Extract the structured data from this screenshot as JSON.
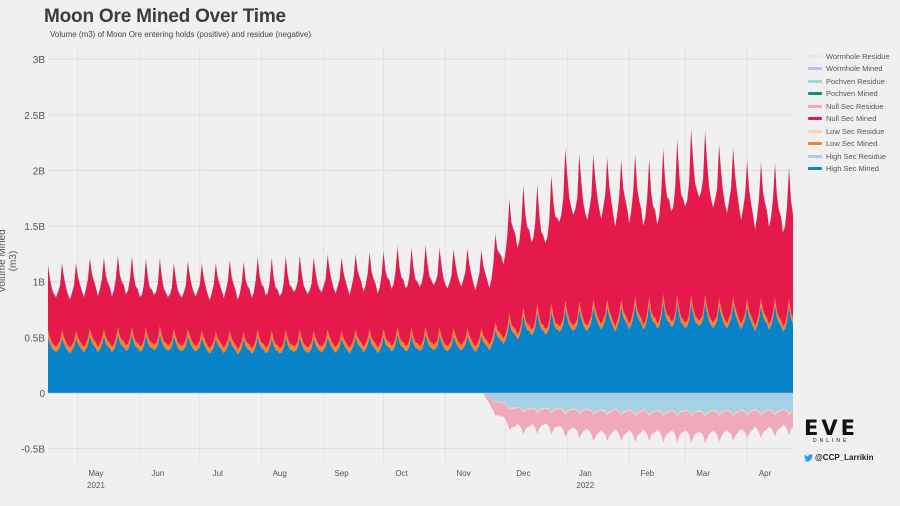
{
  "title": "Moon Ore Mined Over Time",
  "subtitle": "Volume (m3) of Moon Ore entering holds (positive) and residue (negative)",
  "twitter_handle": "@CCP_Larrikin",
  "logo": {
    "mark": "EVE",
    "sub": "ONLINE"
  },
  "legend": [
    {
      "label": "Wormhole Residue",
      "color": "#e9e4f7"
    },
    {
      "label": "Wormhole Mined",
      "color": "#c7b8f0"
    },
    {
      "label": "Pochven Residue",
      "color": "#a0d8cc"
    },
    {
      "label": "Pochven Mined",
      "color": "#1a8a80"
    },
    {
      "label": "Null Sec Residue",
      "color": "#f0a8bc"
    },
    {
      "label": "Null Sec Mined",
      "color": "#e5194a"
    },
    {
      "label": "Low Sec Residue",
      "color": "#f5d4b0"
    },
    {
      "label": "Low Sec Mined",
      "color": "#f0852d"
    },
    {
      "label": "High Sec Residue",
      "color": "#a6d0e6"
    },
    {
      "label": "High Sec Mined",
      "color": "#0882c8"
    }
  ],
  "chart_data": {
    "type": "area",
    "title": "Moon Ore Mined Over Time",
    "subtitle": "Volume (m3) of Moon Ore entering holds (positive) and residue (negative)",
    "ylabel": "Volume Mined (m3)",
    "xlabel": "",
    "ylim": [
      -0.62,
      3.1
    ],
    "yticks": [
      {
        "value": 3,
        "label": "3B"
      },
      {
        "value": 2.5,
        "label": "2.5B"
      },
      {
        "value": 2,
        "label": "2B"
      },
      {
        "value": 1.5,
        "label": "1.5B"
      },
      {
        "value": 1,
        "label": "1B"
      },
      {
        "value": 0.5,
        "label": "0.5B"
      },
      {
        "value": 0,
        "label": "0"
      },
      {
        "value": -0.5,
        "label": "-0.5B"
      }
    ],
    "xrange": [
      "2021-04-16",
      "2022-04-24"
    ],
    "xticks": [
      {
        "date": "2021-05-01",
        "label": "May",
        "sub": "2021"
      },
      {
        "date": "2021-06-01",
        "label": "Jun",
        "sub": ""
      },
      {
        "date": "2021-07-01",
        "label": "Jul",
        "sub": ""
      },
      {
        "date": "2021-08-01",
        "label": "Aug",
        "sub": ""
      },
      {
        "date": "2021-09-01",
        "label": "Sep",
        "sub": ""
      },
      {
        "date": "2021-10-01",
        "label": "Oct",
        "sub": ""
      },
      {
        "date": "2021-11-01",
        "label": "Nov",
        "sub": ""
      },
      {
        "date": "2021-12-01",
        "label": "Dec",
        "sub": ""
      },
      {
        "date": "2022-01-01",
        "label": "Jan",
        "sub": "2022"
      },
      {
        "date": "2022-02-01",
        "label": "Feb",
        "sub": ""
      },
      {
        "date": "2022-03-01",
        "label": "Mar",
        "sub": ""
      },
      {
        "date": "2022-04-01",
        "label": "Apr",
        "sub": ""
      }
    ],
    "units": "billions of m3",
    "series": [
      {
        "name": "High Sec Mined",
        "color": "#0882c8",
        "stack": "positive",
        "points": [
          [
            "2021-04-16",
            0.38
          ],
          [
            "2021-05-15",
            0.4
          ],
          [
            "2021-06-15",
            0.4
          ],
          [
            "2021-07-15",
            0.38
          ],
          [
            "2021-08-15",
            0.38
          ],
          [
            "2021-09-15",
            0.39
          ],
          [
            "2021-10-15",
            0.4
          ],
          [
            "2021-11-15",
            0.4
          ],
          [
            "2021-11-24",
            0.42
          ],
          [
            "2021-12-05",
            0.52
          ],
          [
            "2021-12-20",
            0.56
          ],
          [
            "2022-01-15",
            0.6
          ],
          [
            "2022-02-15",
            0.62
          ],
          [
            "2022-03-15",
            0.62
          ],
          [
            "2022-04-24",
            0.6
          ]
        ]
      },
      {
        "name": "Low Sec Mined",
        "color": "#f0852d",
        "stack": "positive",
        "points": [
          [
            "2021-04-16",
            0.05
          ],
          [
            "2021-11-24",
            0.05
          ],
          [
            "2021-12-20",
            0.05
          ],
          [
            "2022-04-24",
            0.05
          ]
        ]
      },
      {
        "name": "Null Sec Mined",
        "color": "#e5194a",
        "stack": "positive",
        "points": [
          [
            "2021-04-16",
            0.45
          ],
          [
            "2021-05-15",
            0.5
          ],
          [
            "2021-06-15",
            0.45
          ],
          [
            "2021-07-15",
            0.48
          ],
          [
            "2021-08-15",
            0.5
          ],
          [
            "2021-09-15",
            0.52
          ],
          [
            "2021-10-15",
            0.55
          ],
          [
            "2021-11-15",
            0.55
          ],
          [
            "2021-11-24",
            0.55
          ],
          [
            "2021-12-05",
            0.85
          ],
          [
            "2021-12-20",
            0.8
          ],
          [
            "2022-01-01",
            1.05
          ],
          [
            "2022-01-15",
            1.0
          ],
          [
            "2022-02-15",
            0.95
          ],
          [
            "2022-03-05",
            1.15
          ],
          [
            "2022-03-15",
            1.1
          ],
          [
            "2022-04-05",
            0.95
          ],
          [
            "2022-04-24",
            0.9
          ]
        ]
      },
      {
        "name": "Pochven Mined",
        "color": "#1a8a80",
        "stack": "positive",
        "points": [
          [
            "2021-04-16",
            0.005
          ],
          [
            "2022-04-24",
            0.005
          ]
        ]
      },
      {
        "name": "Wormhole Mined",
        "color": "#c7b8f0",
        "stack": "positive",
        "points": [
          [
            "2021-04-16",
            0.01
          ],
          [
            "2022-04-24",
            0.01
          ]
        ]
      },
      {
        "name": "High Sec Residue",
        "color": "#a6d0e6",
        "stack": "negative",
        "points": [
          [
            "2021-04-16",
            0
          ],
          [
            "2021-11-20",
            0
          ],
          [
            "2021-11-24",
            -0.05
          ],
          [
            "2021-12-05",
            -0.13
          ],
          [
            "2022-01-15",
            -0.15
          ],
          [
            "2022-02-15",
            -0.16
          ],
          [
            "2022-03-15",
            -0.16
          ],
          [
            "2022-04-24",
            -0.15
          ]
        ]
      },
      {
        "name": "Low Sec Residue",
        "color": "#f5d4b0",
        "stack": "negative",
        "points": [
          [
            "2021-04-16",
            0
          ],
          [
            "2021-11-20",
            0
          ],
          [
            "2021-12-05",
            -0.01
          ],
          [
            "2022-04-24",
            -0.01
          ]
        ]
      },
      {
        "name": "Null Sec Residue",
        "color": "#f0a8bc",
        "stack": "negative",
        "points": [
          [
            "2021-04-16",
            0
          ],
          [
            "2021-11-20",
            0
          ],
          [
            "2021-11-24",
            -0.08
          ],
          [
            "2021-12-05",
            -0.16
          ],
          [
            "2021-12-20",
            -0.14
          ],
          [
            "2022-01-15",
            -0.19
          ],
          [
            "2022-02-15",
            -0.18
          ],
          [
            "2022-03-15",
            -0.19
          ],
          [
            "2022-04-24",
            -0.14
          ]
        ]
      },
      {
        "name": "Pochven Residue",
        "color": "#a0d8cc",
        "stack": "negative",
        "points": [
          [
            "2021-04-16",
            0
          ],
          [
            "2022-04-24",
            0
          ]
        ]
      },
      {
        "name": "Wormhole Residue",
        "color": "#e9e4f7",
        "stack": "negative",
        "points": [
          [
            "2021-04-16",
            0
          ],
          [
            "2022-04-24",
            0
          ]
        ]
      }
    ],
    "weekly_cycle": {
      "mined_amplitude": 0.3,
      "residue_amplitude": 0.25,
      "period_days": 7
    },
    "grid": true,
    "legend_position": "right"
  }
}
